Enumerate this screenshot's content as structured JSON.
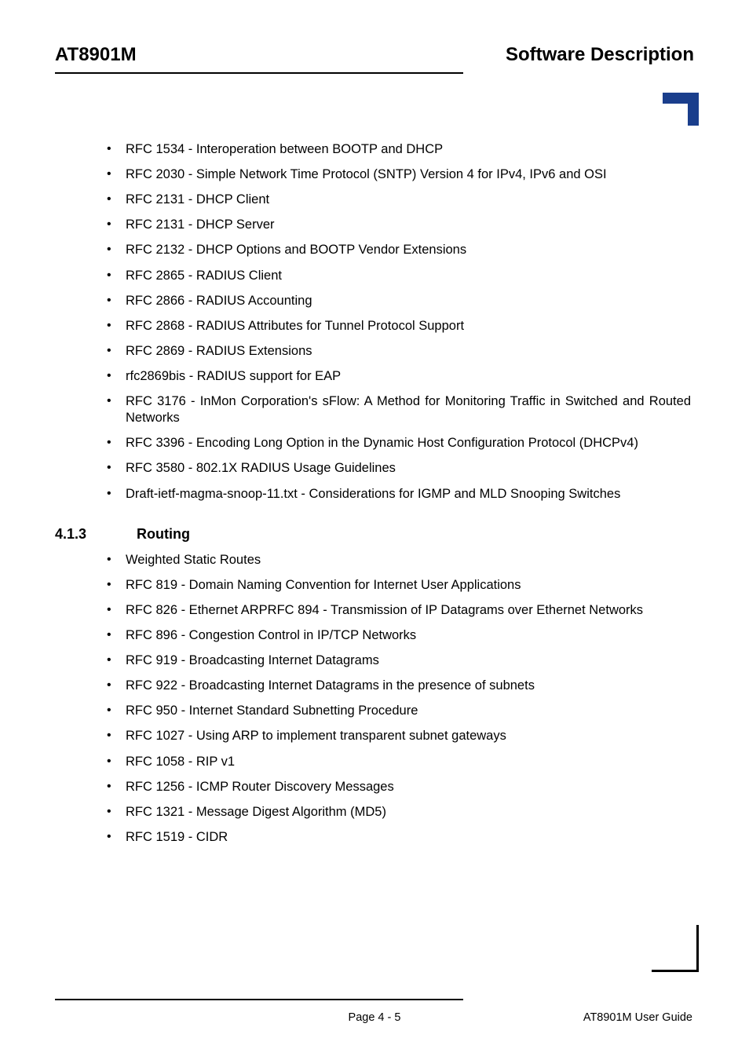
{
  "header": {
    "left": "AT8901M",
    "right": "Software Description"
  },
  "list1": [
    "RFC 1534 - Interoperation between BOOTP and DHCP",
    "RFC 2030 - Simple Network Time Protocol (SNTP) Version 4 for IPv4, IPv6 and OSI",
    "RFC 2131 - DHCP Client",
    "RFC 2131 - DHCP Server",
    "RFC 2132 - DHCP Options and BOOTP Vendor Extensions",
    "RFC 2865 - RADIUS Client",
    "RFC 2866 - RADIUS Accounting",
    "RFC 2868 - RADIUS Attributes for Tunnel Protocol Support",
    "RFC 2869 - RADIUS Extensions",
    "rfc2869bis - RADIUS support for EAP",
    "RFC 3176 - InMon Corporation's sFlow: A Method for Monitoring Traffic in Switched and Routed Networks",
    "RFC 3396 - Encoding Long Option in the Dynamic Host Configuration Protocol (DHCPv4)",
    "RFC 3580 - 802.1X RADIUS Usage Guidelines",
    "Draft-ietf-magma-snoop-11.txt - Considerations for IGMP and MLD Snooping Switches"
  ],
  "section": {
    "number": "4.1.3",
    "title": "Routing"
  },
  "list2": [
    "Weighted Static Routes",
    "RFC 819 - Domain Naming Convention for Internet User Applications",
    "RFC 826 - Ethernet ARPRFC 894 - Transmission of IP Datagrams over Ethernet Networks",
    "RFC 896 - Congestion Control in IP/TCP Networks",
    "RFC 919 - Broadcasting Internet Datagrams",
    "RFC 922 - Broadcasting Internet Datagrams in the presence of subnets",
    "RFC 950 - Internet Standard Subnetting Procedure",
    "RFC 1027 - Using ARP to implement transparent subnet gateways",
    "RFC 1058 - RIP v1",
    "RFC 1256 - ICMP Router Discovery Messages",
    "RFC 1321 - Message Digest Algorithm (MD5)",
    "RFC 1519 - CIDR"
  ],
  "footer": {
    "center": "Page 4 - 5",
    "right": "AT8901M User Guide"
  },
  "colors": {
    "accent": "#1a3e8c",
    "text": "#000000",
    "background": "#ffffff"
  }
}
